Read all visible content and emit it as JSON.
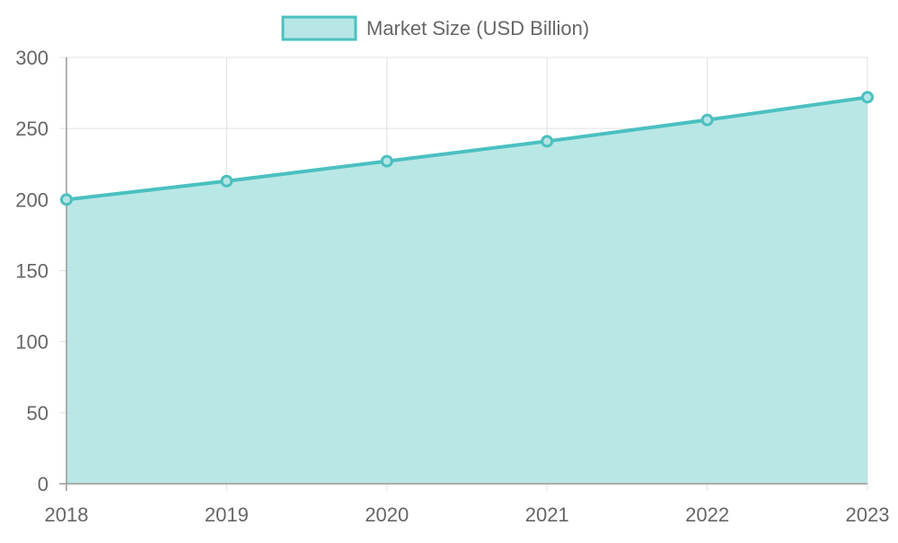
{
  "chart_data": {
    "type": "area",
    "categories": [
      "2018",
      "2019",
      "2020",
      "2021",
      "2022",
      "2023"
    ],
    "series": [
      {
        "name": "Market Size (USD Billion)",
        "values": [
          200,
          213,
          227,
          241,
          256,
          272
        ]
      }
    ],
    "y_ticks": [
      "0",
      "50",
      "100",
      "150",
      "200",
      "250",
      "300"
    ],
    "ylim": [
      0,
      300
    ],
    "grid": true,
    "legend_position": "top",
    "colors": {
      "line": "#4BC0C0",
      "fill": "#B5E6E5",
      "grid": "#e0e0e0",
      "axis": "#999999",
      "text": "#666666"
    }
  }
}
